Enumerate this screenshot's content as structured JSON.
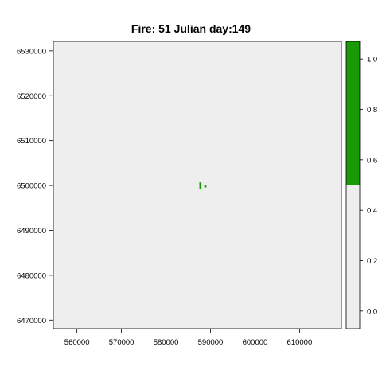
{
  "title": "Fire: 51    Julian day:149",
  "map": {
    "background_color": "#eeeeee",
    "burn_color": "#1a9a06",
    "x_ticks": [
      560000,
      570000,
      580000,
      590000,
      600000,
      610000
    ],
    "y_ticks": [
      6470000,
      6480000,
      6490000,
      6500000,
      6510000,
      6520000,
      6530000
    ],
    "x_range": [
      554700,
      619400
    ],
    "y_range": [
      6468100,
      6532100
    ],
    "burned_cells": [
      {
        "x0": 587500,
        "x1": 587970,
        "y0": 6499180,
        "y1": 6500700
      },
      {
        "x0": 588600,
        "x1": 589080,
        "y0": 6499560,
        "y1": 6500020
      }
    ]
  },
  "legend": {
    "ticks": [
      "0.0",
      "0.2",
      "0.4",
      "0.6",
      "0.8",
      "1.0"
    ],
    "tick_values": [
      0.0,
      0.2,
      0.4,
      0.6,
      0.8,
      1.0
    ],
    "range": [
      -0.07,
      1.07
    ],
    "split_value": 0.5,
    "low_color": "#eeeeee",
    "high_color": "#1a9a06"
  }
}
